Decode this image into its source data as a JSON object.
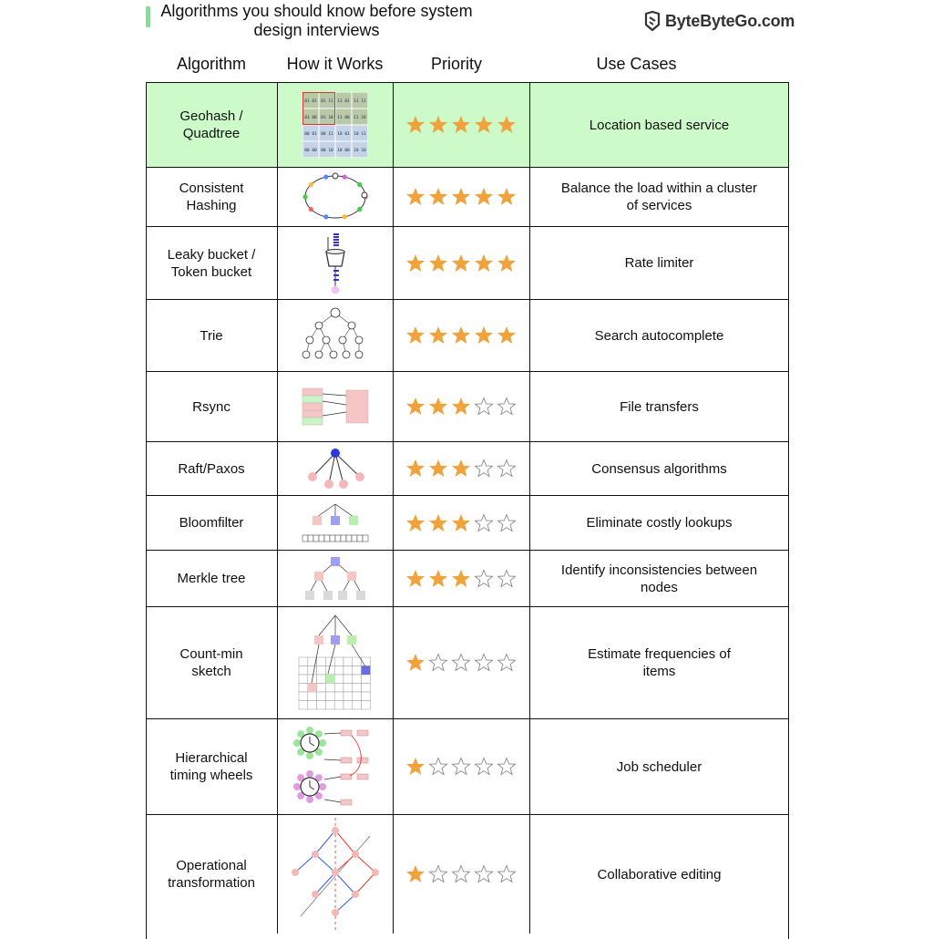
{
  "header": {
    "title": "Algorithms you should know before system design interviews",
    "brand": "ByteByteGo.com"
  },
  "columns": [
    "Algorithm",
    "How it Works",
    "Priority",
    "Use Cases"
  ],
  "colors": {
    "star": "#f0a33c",
    "highlight": "#ccfbc9",
    "accent": "#8fd9a0"
  },
  "rows": [
    {
      "algorithm": "Geohash /\nQuadtree",
      "priority": 5,
      "use_case": "Location based service",
      "icon": "geohash-grid-icon",
      "highlight": true
    },
    {
      "algorithm": "Consistent\nHashing",
      "priority": 5,
      "use_case": "Balance the load within a cluster\nof services",
      "icon": "hash-ring-icon"
    },
    {
      "algorithm": "Leaky bucket /\nToken bucket",
      "priority": 5,
      "use_case": "Rate limiter",
      "icon": "bucket-icon"
    },
    {
      "algorithm": "Trie",
      "priority": 5,
      "use_case": "Search autocomplete",
      "icon": "trie-tree-icon"
    },
    {
      "algorithm": "Rsync",
      "priority": 3,
      "use_case": "File transfers",
      "icon": "rsync-blocks-icon"
    },
    {
      "algorithm": "Raft/Paxos",
      "priority": 3,
      "use_case": "Consensus algorithms",
      "icon": "leader-followers-icon"
    },
    {
      "algorithm": "Bloomfilter",
      "priority": 3,
      "use_case": "Eliminate costly lookups",
      "icon": "bloom-bits-icon"
    },
    {
      "algorithm": "Merkle tree",
      "priority": 3,
      "use_case": "Identify inconsistencies between\nnodes",
      "icon": "merkle-tree-icon"
    },
    {
      "algorithm": "Count-min\nsketch",
      "priority": 1,
      "use_case": "Estimate frequencies of\nitems",
      "icon": "count-min-grid-icon"
    },
    {
      "algorithm": "Hierarchical\ntiming wheels",
      "priority": 1,
      "use_case": "Job scheduler",
      "icon": "timing-wheel-icon"
    },
    {
      "algorithm": "Operational\ntransformation",
      "priority": 1,
      "use_case": "Collaborative editing",
      "icon": "ot-diamond-icon"
    }
  ]
}
